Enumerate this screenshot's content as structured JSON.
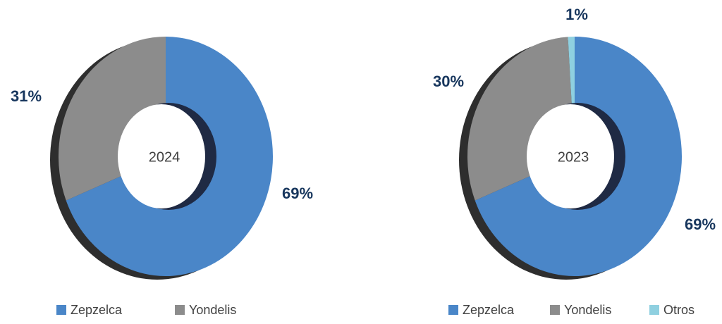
{
  "chart_data": [
    {
      "type": "donut",
      "center_label": "2024",
      "categories": [
        "Zepzelca",
        "Yondelis"
      ],
      "values": [
        69,
        31
      ],
      "value_labels": [
        "69%",
        "31%"
      ],
      "colors": [
        "#4a86c8",
        "#8c8c8c"
      ]
    },
    {
      "type": "donut",
      "center_label": "2023",
      "categories": [
        "Zepzelca",
        "Yondelis",
        "Otros"
      ],
      "values": [
        69,
        30,
        1
      ],
      "value_labels": [
        "69%",
        "30%",
        "1%"
      ],
      "colors": [
        "#4a86c8",
        "#8c8c8c",
        "#8fd0e0"
      ]
    }
  ]
}
